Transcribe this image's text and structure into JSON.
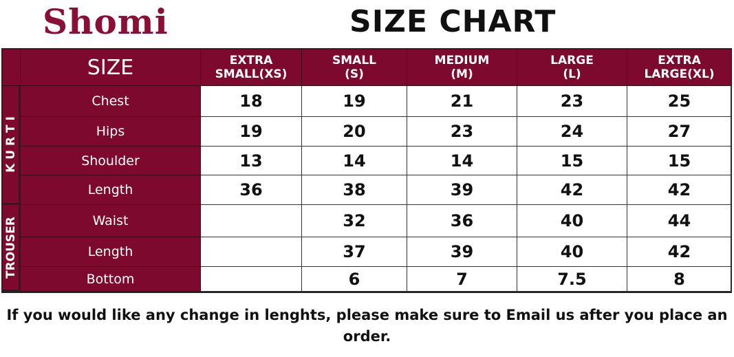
{
  "logo": "Shomi",
  "title": "SIZE CHART",
  "brand_color": "#7d0a2e",
  "size_label": "SIZE",
  "columns": [
    {
      "l1": "EXTRA",
      "l2": "SMALL(XS)"
    },
    {
      "l1": "SMALL",
      "l2": "(S)"
    },
    {
      "l1": "MEDIUM",
      "l2": "(M)"
    },
    {
      "l1": "LARGE",
      "l2": "(L)"
    },
    {
      "l1": "EXTRA",
      "l2": "LARGE(XL)"
    }
  ],
  "groups": [
    {
      "label": "K U R T I",
      "rows": [
        {
          "label": "Chest",
          "values": [
            "18",
            "19",
            "21",
            "23",
            "25"
          ]
        },
        {
          "label": "Hips",
          "values": [
            "19",
            "20",
            "23",
            "24",
            "27"
          ]
        },
        {
          "label": "Shoulder",
          "values": [
            "13",
            "14",
            "14",
            "15",
            "15"
          ]
        },
        {
          "label": "Length",
          "values": [
            "36",
            "38",
            "39",
            "42",
            "42"
          ]
        }
      ]
    },
    {
      "label": "TROUSER",
      "rows": [
        {
          "label": "Waist",
          "values": [
            "",
            "32",
            "36",
            "40",
            "44"
          ]
        },
        {
          "label": "Length",
          "values": [
            "",
            "37",
            "39",
            "40",
            "42"
          ]
        },
        {
          "label": "Bottom",
          "values": [
            "",
            "6",
            "7",
            "7.5",
            "8"
          ]
        }
      ]
    }
  ],
  "note": "If you would like any change in lenghts, please make sure to Email us after you place an order."
}
